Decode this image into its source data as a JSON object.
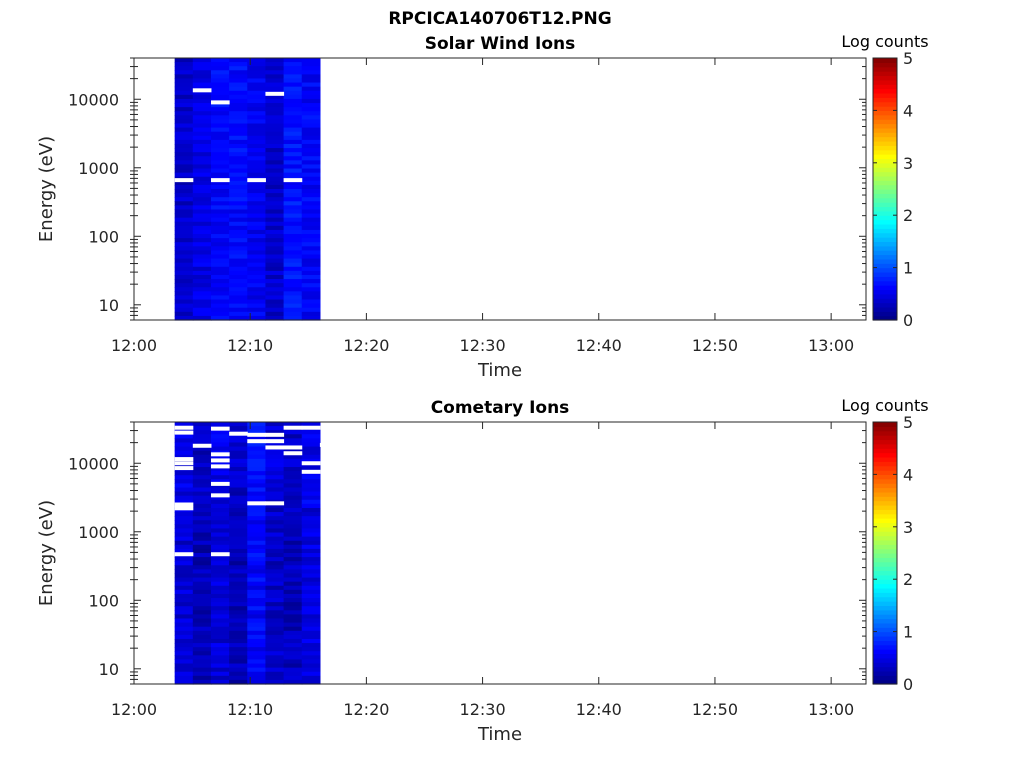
{
  "figure": {
    "title": "RPCICA140706T12.PNG"
  },
  "chart_data": [
    {
      "type": "heatmap",
      "title": "Solar Wind Ions",
      "xlabel": "Time",
      "ylabel": "Energy (eV)",
      "x_range": [
        "12:00",
        "13:03"
      ],
      "x_ticks": [
        "12:00",
        "12:10",
        "12:20",
        "12:30",
        "12:40",
        "12:50",
        "13:00"
      ],
      "y_scale": "log",
      "y_range": [
        6,
        40000
      ],
      "y_ticks": [
        "10",
        "100",
        "1000",
        "10000"
      ],
      "data_time_range": [
        "12:03.5",
        "12:16"
      ],
      "colorbar": {
        "label": "Log counts",
        "range": [
          0,
          5
        ],
        "ticks": [
          "0",
          "1",
          "2",
          "3",
          "4",
          "5"
        ],
        "colormap": "jet"
      },
      "value_range_shown": [
        0.2,
        0.9
      ],
      "white_gaps": [
        {
          "energy": 660,
          "time_bins": [
            0,
            2,
            4,
            6
          ]
        },
        {
          "energy": 13500,
          "time_bins": [
            1
          ]
        },
        {
          "energy": 9000,
          "time_bins": [
            2
          ]
        },
        {
          "energy": 12000,
          "time_bins": [
            5
          ]
        }
      ],
      "grid": false
    },
    {
      "type": "heatmap",
      "title": "Cometary Ions",
      "xlabel": "Time",
      "ylabel": "Energy (eV)",
      "x_range": [
        "12:00",
        "13:03"
      ],
      "x_ticks": [
        "12:00",
        "12:10",
        "12:20",
        "12:30",
        "12:40",
        "12:50",
        "13:00"
      ],
      "y_scale": "log",
      "y_range": [
        6,
        40000
      ],
      "y_ticks": [
        "10",
        "100",
        "1000",
        "10000"
      ],
      "data_time_range": [
        "12:03.5",
        "12:16"
      ],
      "colorbar": {
        "label": "Log counts",
        "range": [
          0,
          5
        ],
        "ticks": [
          "0",
          "1",
          "2",
          "3",
          "4",
          "5"
        ],
        "colormap": "jet"
      },
      "value_range_shown": [
        0.0,
        0.8
      ],
      "white_gaps": [
        {
          "energy": 33000,
          "time_bins": [
            0
          ]
        },
        {
          "energy": 28000,
          "time_bins": [
            0
          ]
        },
        {
          "energy": 11500,
          "time_bins": [
            0
          ]
        },
        {
          "energy": 10000,
          "time_bins": [
            0
          ]
        },
        {
          "energy": 8500,
          "time_bins": [
            0
          ]
        },
        {
          "energy": 2500,
          "time_bins": [
            0
          ]
        },
        {
          "energy": 2200,
          "time_bins": [
            0
          ]
        },
        {
          "energy": 470,
          "time_bins": [
            0,
            2
          ]
        },
        {
          "energy": 18000,
          "time_bins": [
            1
          ]
        },
        {
          "energy": 32000,
          "time_bins": [
            2
          ]
        },
        {
          "energy": 13500,
          "time_bins": [
            2
          ]
        },
        {
          "energy": 11000,
          "time_bins": [
            2
          ]
        },
        {
          "energy": 9000,
          "time_bins": [
            2
          ]
        },
        {
          "energy": 5000,
          "time_bins": [
            2
          ]
        },
        {
          "energy": 3400,
          "time_bins": [
            2
          ]
        },
        {
          "energy": 27000,
          "time_bins": [
            3
          ]
        },
        {
          "energy": 26000,
          "time_bins": [
            4,
            5
          ]
        },
        {
          "energy": 21000,
          "time_bins": [
            4
          ]
        },
        {
          "energy": 2600,
          "time_bins": [
            4,
            5
          ]
        },
        {
          "energy": 21000,
          "time_bins": [
            5
          ]
        },
        {
          "energy": 17000,
          "time_bins": [
            5,
            6
          ]
        },
        {
          "energy": 33000,
          "time_bins": [
            6,
            7
          ]
        },
        {
          "energy": 14000,
          "time_bins": [
            6
          ]
        },
        {
          "energy": 10000,
          "time_bins": [
            7
          ]
        },
        {
          "energy": 7500,
          "time_bins": [
            7
          ]
        },
        {
          "energy": 18500,
          "time_bins": [
            8
          ]
        }
      ],
      "grid": false
    }
  ]
}
